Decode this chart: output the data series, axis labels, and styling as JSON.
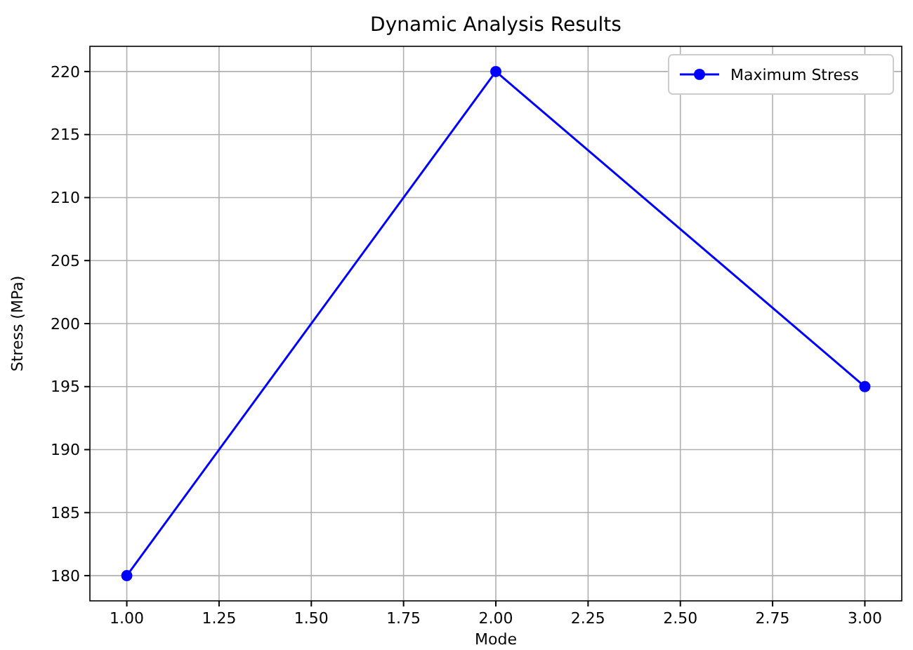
{
  "chart_data": {
    "type": "line",
    "title": "Dynamic Analysis Results",
    "xlabel": "Mode",
    "ylabel": "Stress (MPa)",
    "x": [
      1,
      2,
      3
    ],
    "series": [
      {
        "name": "Maximum Stress",
        "color": "#0000ff",
        "values": [
          180,
          220,
          195
        ]
      }
    ],
    "xlim": [
      0.9,
      3.1
    ],
    "xticks": [
      {
        "value": 1,
        "label": "1.00"
      },
      {
        "value": 1.25,
        "label": "1.25"
      },
      {
        "value": 1.5,
        "label": "1.50"
      },
      {
        "value": 1.75,
        "label": "1.75"
      },
      {
        "value": 2,
        "label": "2.00"
      },
      {
        "value": 2.25,
        "label": "2.25"
      },
      {
        "value": 2.5,
        "label": "2.50"
      },
      {
        "value": 2.75,
        "label": "2.75"
      },
      {
        "value": 3,
        "label": "3.00"
      }
    ],
    "ylim": [
      178,
      222
    ],
    "yticks": [
      180,
      185,
      190,
      195,
      200,
      205,
      210,
      215,
      220
    ],
    "grid": true,
    "legend": "top right",
    "marker": "circle",
    "line_style": "solid"
  }
}
